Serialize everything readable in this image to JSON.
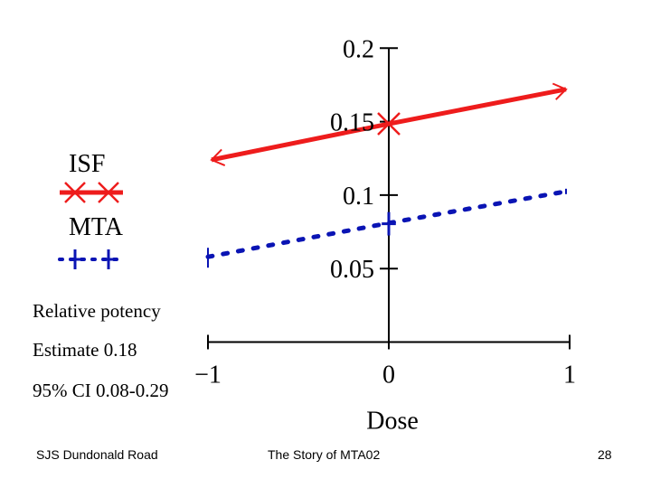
{
  "chart_data": {
    "type": "line",
    "title": "",
    "xlabel": "Dose",
    "ylabel": "",
    "xlim": [
      -1,
      1
    ],
    "ylim": [
      0,
      0.2
    ],
    "x_ticks": [
      {
        "value": -1,
        "label": "−1"
      },
      {
        "value": 0,
        "label": "0"
      },
      {
        "value": 1,
        "label": "1"
      }
    ],
    "y_ticks": [
      {
        "value": 0.05,
        "label": "0.05"
      },
      {
        "value": 0.1,
        "label": "0.1"
      },
      {
        "value": 0.15,
        "label": "0.15"
      },
      {
        "value": 0.2,
        "label": "0.2"
      }
    ],
    "grid": false,
    "legend_placement": "left",
    "series": [
      {
        "name": "ISF",
        "color": "#ee1c1c",
        "style": "solid",
        "marker": "x",
        "x": [
          -0.98,
          0,
          0.98
        ],
        "y": [
          0.124,
          0.1485,
          0.172
        ],
        "marked_point": {
          "x": 0,
          "y": 0.1485
        },
        "end_markers": "arrow"
      },
      {
        "name": "MTA",
        "color": "#0a14b4",
        "style": "dotted",
        "marker": "plus",
        "x": [
          -1,
          0,
          0.98
        ],
        "y": [
          0.058,
          0.081,
          0.1025
        ],
        "marked_point": {
          "x": 0,
          "y": 0.0805
        },
        "end_markers": "tick"
      }
    ]
  },
  "annotations": {
    "heading": "Relative potency",
    "estimate": "Estimate 0.18",
    "ci": "95% CI 0.08-0.29"
  },
  "footer": {
    "left": "SJS Dundonald Road",
    "center": "The Story of MTA02",
    "page_number": "28"
  }
}
